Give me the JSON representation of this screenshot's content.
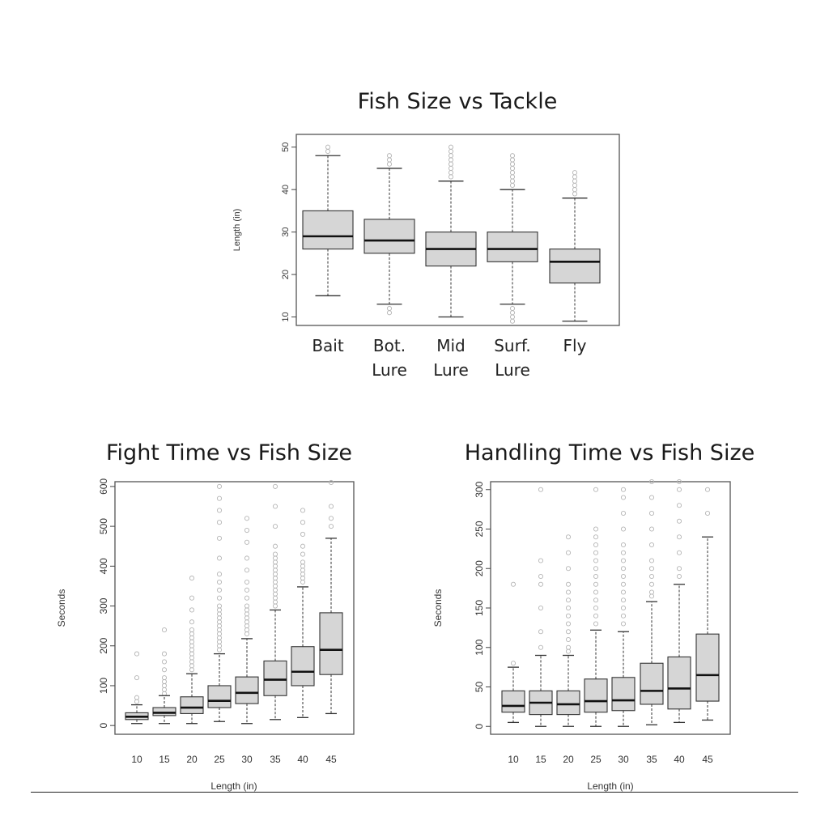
{
  "chart_data": [
    {
      "type": "box",
      "title": "Fish Size vs Tackle",
      "ylabel": "Length (in)",
      "xlabel": "",
      "ylim": [
        8,
        53
      ],
      "yticks": [
        10,
        20,
        30,
        40,
        50
      ],
      "categories": [
        "Bait",
        "Bot.\nLure",
        "Mid\nLure",
        "Surf.\nLure",
        "Fly"
      ],
      "boxes": [
        {
          "whisker_low": 15,
          "q1": 26,
          "median": 29,
          "q3": 35,
          "whisker_high": 48,
          "outliers": [
            49,
            50
          ]
        },
        {
          "whisker_low": 13,
          "q1": 25,
          "median": 28,
          "q3": 33,
          "whisker_high": 45,
          "outliers": [
            11,
            12,
            46,
            47,
            48
          ]
        },
        {
          "whisker_low": 10,
          "q1": 22,
          "median": 26,
          "q3": 30,
          "whisker_high": 42,
          "outliers": [
            43,
            44,
            45,
            46,
            47,
            48,
            49,
            50
          ]
        },
        {
          "whisker_low": 13,
          "q1": 23,
          "median": 26,
          "q3": 30,
          "whisker_high": 40,
          "outliers": [
            9,
            10,
            11,
            12,
            41,
            42,
            43,
            44,
            45,
            46,
            47,
            48
          ]
        },
        {
          "whisker_low": 9,
          "q1": 18,
          "median": 23,
          "q3": 26,
          "whisker_high": 38,
          "outliers": [
            39,
            40,
            41,
            42,
            43,
            44
          ]
        }
      ]
    },
    {
      "type": "box",
      "title": "Fight Time vs Fish Size",
      "ylabel": "Seconds",
      "xlabel": "Length (in)",
      "ylim": [
        -22,
        612
      ],
      "yticks": [
        0,
        100,
        200,
        300,
        400,
        500,
        600
      ],
      "categories": [
        "10",
        "15",
        "20",
        "25",
        "30",
        "35",
        "40",
        "45"
      ],
      "boxes": [
        {
          "whisker_low": 5,
          "q1": 15,
          "median": 22,
          "q3": 32,
          "whisker_high": 52,
          "outliers": [
            60,
            70,
            120,
            180
          ]
        },
        {
          "whisker_low": 5,
          "q1": 25,
          "median": 32,
          "q3": 45,
          "whisker_high": 75,
          "outliers": [
            80,
            90,
            100,
            110,
            120,
            140,
            160,
            180,
            240
          ]
        },
        {
          "whisker_low": 5,
          "q1": 30,
          "median": 45,
          "q3": 72,
          "whisker_high": 130,
          "outliers": [
            140,
            150,
            160,
            170,
            180,
            190,
            200,
            210,
            220,
            230,
            240,
            260,
            290,
            320,
            370
          ]
        },
        {
          "whisker_low": 10,
          "q1": 45,
          "median": 62,
          "q3": 100,
          "whisker_high": 180,
          "outliers": [
            190,
            200,
            210,
            220,
            230,
            240,
            250,
            260,
            270,
            280,
            290,
            300,
            320,
            340,
            360,
            380,
            420,
            470,
            510,
            540,
            570,
            600
          ]
        },
        {
          "whisker_low": 5,
          "q1": 55,
          "median": 82,
          "q3": 122,
          "whisker_high": 218,
          "outliers": [
            230,
            240,
            250,
            260,
            270,
            280,
            290,
            300,
            320,
            340,
            360,
            390,
            420,
            460,
            490,
            520
          ]
        },
        {
          "whisker_low": 15,
          "q1": 75,
          "median": 115,
          "q3": 162,
          "whisker_high": 290,
          "outliers": [
            300,
            310,
            320,
            330,
            340,
            350,
            360,
            370,
            380,
            390,
            400,
            410,
            420,
            430,
            450,
            500,
            550,
            600
          ]
        },
        {
          "whisker_low": 20,
          "q1": 100,
          "median": 135,
          "q3": 198,
          "whisker_high": 348,
          "outliers": [
            360,
            370,
            380,
            390,
            400,
            410,
            430,
            450,
            480,
            510,
            540
          ]
        },
        {
          "whisker_low": 30,
          "q1": 128,
          "median": 190,
          "q3": 283,
          "whisker_high": 470,
          "outliers": [
            500,
            520,
            550,
            610
          ]
        }
      ]
    },
    {
      "type": "box",
      "title": "Handling Time vs Fish Size",
      "ylabel": "Seconds",
      "xlabel": "Length (in)",
      "ylim": [
        -10,
        310
      ],
      "yticks": [
        0,
        50,
        100,
        150,
        200,
        250,
        300
      ],
      "categories": [
        "10",
        "15",
        "20",
        "25",
        "30",
        "35",
        "40",
        "45"
      ],
      "boxes": [
        {
          "whisker_low": 5,
          "q1": 18,
          "median": 26,
          "q3": 45,
          "whisker_high": 75,
          "outliers": [
            80,
            180
          ]
        },
        {
          "whisker_low": 0,
          "q1": 15,
          "median": 30,
          "q3": 45,
          "whisker_high": 90,
          "outliers": [
            100,
            120,
            150,
            180,
            190,
            210,
            300
          ]
        },
        {
          "whisker_low": 0,
          "q1": 15,
          "median": 28,
          "q3": 45,
          "whisker_high": 90,
          "outliers": [
            95,
            100,
            110,
            120,
            130,
            140,
            150,
            160,
            170,
            180,
            200,
            220,
            240
          ]
        },
        {
          "whisker_low": 0,
          "q1": 18,
          "median": 32,
          "q3": 60,
          "whisker_high": 122,
          "outliers": [
            130,
            140,
            150,
            160,
            170,
            180,
            190,
            200,
            210,
            220,
            230,
            240,
            250,
            300
          ]
        },
        {
          "whisker_low": 0,
          "q1": 20,
          "median": 33,
          "q3": 62,
          "whisker_high": 120,
          "outliers": [
            130,
            140,
            150,
            160,
            170,
            180,
            190,
            200,
            210,
            220,
            230,
            250,
            270,
            290,
            300
          ]
        },
        {
          "whisker_low": 2,
          "q1": 28,
          "median": 45,
          "q3": 80,
          "whisker_high": 158,
          "outliers": [
            165,
            170,
            180,
            190,
            200,
            210,
            230,
            250,
            270,
            290,
            310
          ]
        },
        {
          "whisker_low": 5,
          "q1": 22,
          "median": 48,
          "q3": 88,
          "whisker_high": 180,
          "outliers": [
            190,
            200,
            220,
            240,
            260,
            280,
            300,
            310
          ]
        },
        {
          "whisker_low": 8,
          "q1": 32,
          "median": 65,
          "q3": 117,
          "whisker_high": 240,
          "outliers": [
            270,
            300
          ]
        }
      ]
    }
  ],
  "colors": {
    "box_fill": "#d6d6d6",
    "box_stroke": "#333333",
    "median": "#111111",
    "outlier": "#b5b5b5",
    "frame": "#555555"
  }
}
